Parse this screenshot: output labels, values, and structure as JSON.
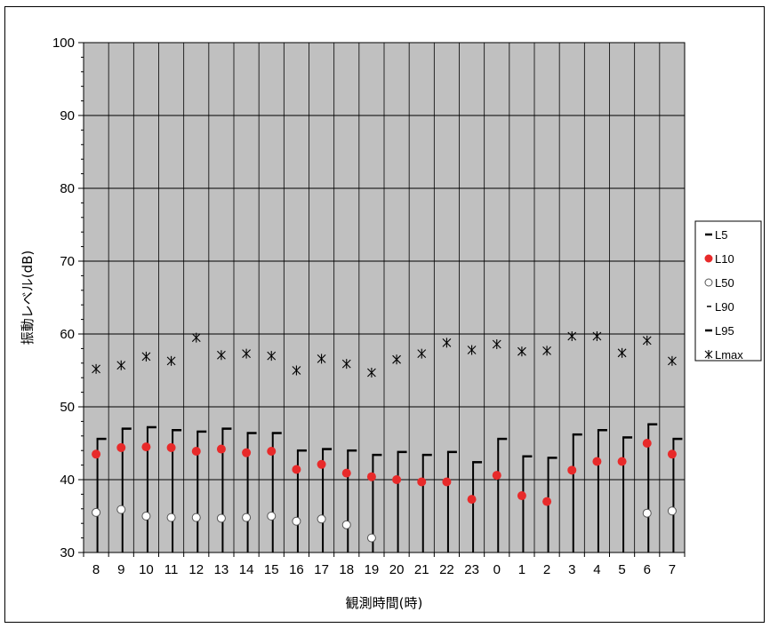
{
  "chart_data": {
    "type": "scatter",
    "xlabel": "観測時間(時)",
    "ylabel": "振動レベル(dB)",
    "ylim": [
      30,
      100
    ],
    "yticks": [
      "30",
      "40",
      "50",
      "60",
      "70",
      "80",
      "90",
      "100"
    ],
    "grid": true,
    "legend_position": "right",
    "categories": [
      "8",
      "9",
      "10",
      "11",
      "12",
      "13",
      "14",
      "15",
      "16",
      "17",
      "18",
      "19",
      "20",
      "21",
      "22",
      "23",
      "0",
      "1",
      "2",
      "3",
      "4",
      "5",
      "6",
      "7"
    ],
    "series": [
      {
        "name": "L5",
        "marker": "bar",
        "color": "#000000",
        "values": [
          45.6,
          47.0,
          47.2,
          46.8,
          46.6,
          47.0,
          46.4,
          46.4,
          44.0,
          44.2,
          44.0,
          43.4,
          43.8,
          43.4,
          43.8,
          42.4,
          45.6,
          43.2,
          43.0,
          46.2,
          46.8,
          45.8,
          47.6,
          45.6
        ]
      },
      {
        "name": "L10",
        "marker": "dot",
        "color": "#e82a2a",
        "values": [
          43.5,
          44.4,
          44.5,
          44.4,
          43.9,
          44.2,
          43.7,
          43.9,
          41.4,
          42.1,
          40.9,
          40.4,
          40.0,
          39.7,
          39.7,
          37.3,
          40.6,
          37.8,
          37.0,
          41.3,
          42.5,
          42.5,
          45.0,
          43.5
        ]
      },
      {
        "name": "L50",
        "marker": "circle",
        "color": "#ffffff",
        "values": [
          35.5,
          35.9,
          35.0,
          34.8,
          34.8,
          34.7,
          34.8,
          35.0,
          34.3,
          34.6,
          33.8,
          32.0,
          null,
          null,
          null,
          null,
          null,
          null,
          null,
          null,
          null,
          null,
          35.4,
          35.7
        ]
      },
      {
        "name": "L90",
        "marker": "dash",
        "color": "#000000",
        "values": [
          null,
          null,
          null,
          null,
          null,
          null,
          null,
          null,
          null,
          null,
          null,
          null,
          null,
          null,
          null,
          null,
          null,
          null,
          null,
          null,
          null,
          null,
          null,
          null
        ]
      },
      {
        "name": "L95",
        "marker": "bar",
        "color": "#000000",
        "values": [
          null,
          null,
          null,
          null,
          null,
          null,
          null,
          null,
          null,
          null,
          null,
          null,
          null,
          null,
          null,
          null,
          null,
          null,
          null,
          null,
          null,
          null,
          null,
          null
        ]
      },
      {
        "name": "Lmax",
        "marker": "star",
        "color": "#000000",
        "values": [
          55.2,
          55.7,
          56.9,
          56.3,
          59.5,
          57.1,
          57.3,
          57.0,
          55.0,
          56.6,
          55.9,
          54.7,
          56.5,
          57.3,
          58.8,
          57.8,
          58.6,
          57.6,
          57.7,
          59.7,
          59.7,
          57.4,
          59.1,
          56.3
        ]
      }
    ]
  }
}
